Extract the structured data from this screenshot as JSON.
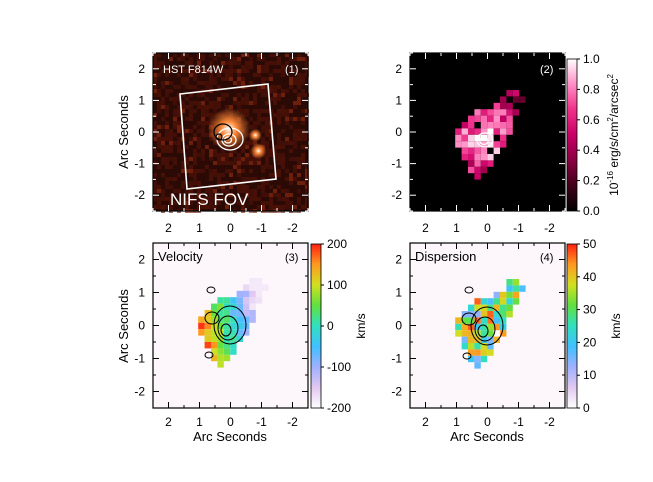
{
  "chart_data": [
    {
      "type": "heatmap",
      "panel": "(1)",
      "title": "HST F814W",
      "annotation": "NIFS FOV",
      "xlabel": "",
      "ylabel": "Arc Seconds",
      "xlim": [
        2.5,
        -2.5
      ],
      "ylim": [
        -2.5,
        2.5
      ],
      "xticks": [
        "2",
        "1",
        "0",
        "-1",
        "-2"
      ],
      "yticks": [
        "2",
        "1",
        "0",
        "-1",
        "-2"
      ],
      "sources": [
        {
          "x": 0.05,
          "y": 0.1,
          "peak": 1.0
        },
        {
          "x": -0.9,
          "y": -0.6,
          "peak": 0.7
        },
        {
          "x": -0.8,
          "y": -0.1,
          "peak": 0.5
        }
      ],
      "background_color": "#2b0a05",
      "source_color": "#ff8a3a",
      "fov_box_color": "#ffffff"
    },
    {
      "type": "heatmap",
      "panel": "(2)",
      "colorbar": {
        "label": "10^-16 erg/s/cm^2/arcsec^2",
        "label_base": "10",
        "label_exp": "-16",
        "label_rest": " erg/s/cm",
        "label_exp2": "2",
        "label_tail": "/arcsec",
        "label_exp3": "2",
        "range": [
          0.0,
          1.0
        ],
        "ticks": [
          "0.0",
          "0.2",
          "0.4",
          "0.6",
          "0.8",
          "1.0"
        ],
        "colors": [
          "#000000",
          "#400018",
          "#8a0040",
          "#c80066",
          "#f0308a",
          "#ff8ec4",
          "#ffffff"
        ]
      },
      "xlim": [
        2.5,
        -2.5
      ],
      "ylim": [
        -2.5,
        2.5
      ],
      "xticks": [
        "2",
        "1",
        "0",
        "-1",
        "-2"
      ],
      "yticks": [
        "2",
        "1",
        "0",
        "-1",
        "-2"
      ],
      "background_color": "#000000"
    },
    {
      "type": "heatmap",
      "panel": "(3)",
      "title": "Velocity",
      "xlabel": "Arc Seconds",
      "ylabel": "Arc Seconds",
      "xlim": [
        2.5,
        -2.5
      ],
      "ylim": [
        -2.5,
        2.5
      ],
      "xticks": [
        "2",
        "1",
        "0",
        "-1",
        "-2"
      ],
      "yticks": [
        "2",
        "1",
        "0",
        "-1",
        "-2"
      ],
      "colorbar": {
        "label": "km/s",
        "range": [
          -200,
          200
        ],
        "ticks": [
          "200",
          "100",
          "0",
          "-100",
          "-200"
        ],
        "colors": [
          "#ffffff",
          "#e0c8f0",
          "#9fb0ff",
          "#40c0ff",
          "#30e0c0",
          "#60e040",
          "#d0e020",
          "#ff9a20",
          "#ff2010"
        ]
      }
    },
    {
      "type": "heatmap",
      "panel": "(4)",
      "title": "Dispersion",
      "xlabel": "Arc Seconds",
      "ylabel": "",
      "xlim": [
        2.5,
        -2.5
      ],
      "ylim": [
        -2.5,
        2.5
      ],
      "xticks": [
        "2",
        "1",
        "0",
        "-1",
        "-2"
      ],
      "yticks": [
        "2",
        "1",
        "0",
        "-1",
        "-2"
      ],
      "colorbar": {
        "label": "km/s",
        "range": [
          0,
          50
        ],
        "ticks": [
          "50",
          "40",
          "30",
          "20",
          "10",
          "0"
        ],
        "colors": [
          "#ffffff",
          "#e0c8f0",
          "#9fb0ff",
          "#40c0ff",
          "#30e0c0",
          "#60e040",
          "#d0e020",
          "#ff9a20",
          "#ff2010"
        ]
      }
    }
  ]
}
